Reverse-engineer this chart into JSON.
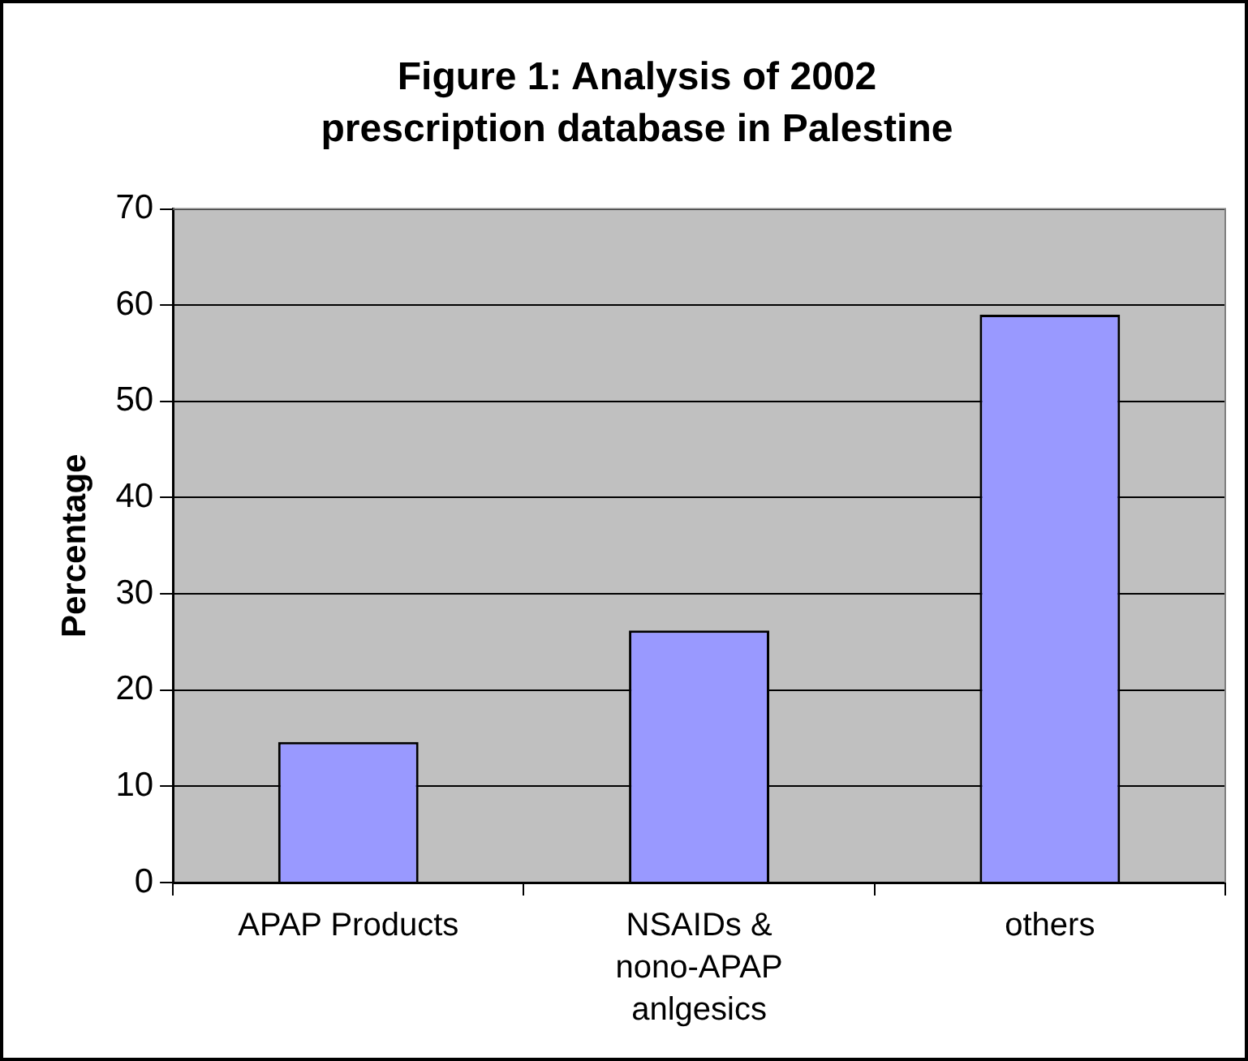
{
  "chart_data": {
    "type": "bar",
    "title": "Figure 1: Analysis of 2002 prescription database in Palestine",
    "ylabel": "Percentage",
    "categories": [
      "APAP Products",
      "NSAIDs & nono-APAP anlgesics",
      "others"
    ],
    "values": [
      14.6,
      26.2,
      59
    ],
    "color": "#9999ff",
    "ylim": [
      0,
      70
    ],
    "yticks": [
      0,
      10,
      20,
      30,
      40,
      50,
      60,
      70
    ],
    "grid": "y"
  }
}
